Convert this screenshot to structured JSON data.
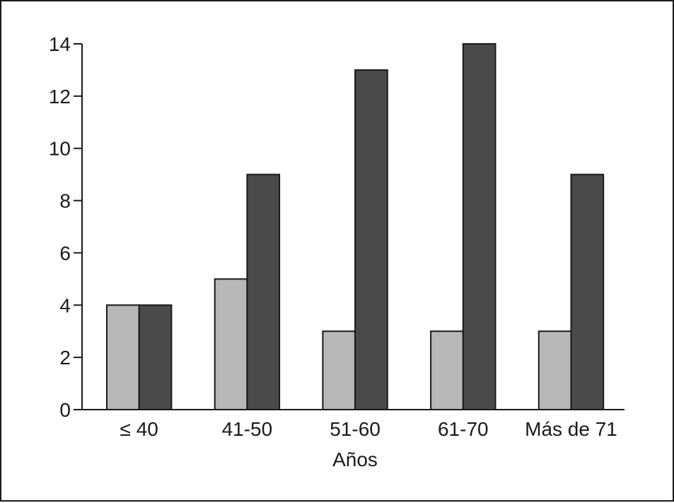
{
  "chart_data": {
    "type": "bar",
    "categories": [
      "≤ 40",
      "41-50",
      "51-60",
      "61-70",
      "Más de 71"
    ],
    "series": [
      {
        "values": [
          4,
          5,
          3,
          3,
          3
        ],
        "color": "#b7b7b7"
      },
      {
        "values": [
          4,
          9,
          13,
          14,
          9
        ],
        "color": "#4a4a4a"
      }
    ],
    "xlabel": "Años",
    "ylabel": "",
    "ylim": [
      0,
      14
    ],
    "yticks": [
      0,
      2,
      4,
      6,
      8,
      10,
      12,
      14
    ],
    "grid": false,
    "legend": "none"
  }
}
